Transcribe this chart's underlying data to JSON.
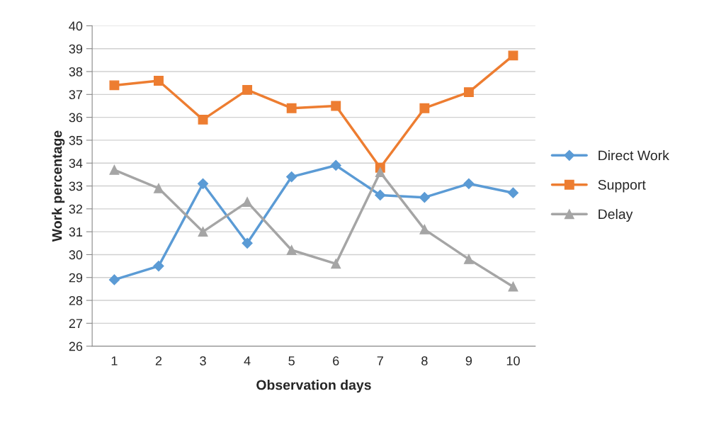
{
  "chart_data": {
    "type": "line",
    "xlabel": "Observation days",
    "ylabel": "Work percentage",
    "categories": [
      "1",
      "2",
      "3",
      "4",
      "5",
      "6",
      "7",
      "8",
      "9",
      "10"
    ],
    "series": [
      {
        "name": "Direct Work",
        "color": "#5b9bd5",
        "marker": "diamond",
        "values": [
          28.9,
          29.5,
          33.1,
          30.5,
          33.4,
          33.9,
          32.6,
          32.5,
          33.1,
          32.7
        ]
      },
      {
        "name": "Support",
        "color": "#ed7d31",
        "marker": "square",
        "values": [
          37.4,
          37.6,
          35.9,
          37.2,
          36.4,
          36.5,
          33.8,
          36.4,
          37.1,
          38.7
        ]
      },
      {
        "name": "Delay",
        "color": "#a5a5a5",
        "marker": "triangle",
        "values": [
          33.7,
          32.9,
          31.0,
          32.3,
          30.2,
          29.6,
          33.6,
          31.1,
          29.8,
          28.6
        ]
      }
    ],
    "ylim": [
      26,
      40
    ],
    "yticks": [
      26,
      27,
      28,
      29,
      30,
      31,
      32,
      33,
      34,
      35,
      36,
      37,
      38,
      39,
      40
    ],
    "grid": "y",
    "legend": "right",
    "line_style": "solid"
  }
}
